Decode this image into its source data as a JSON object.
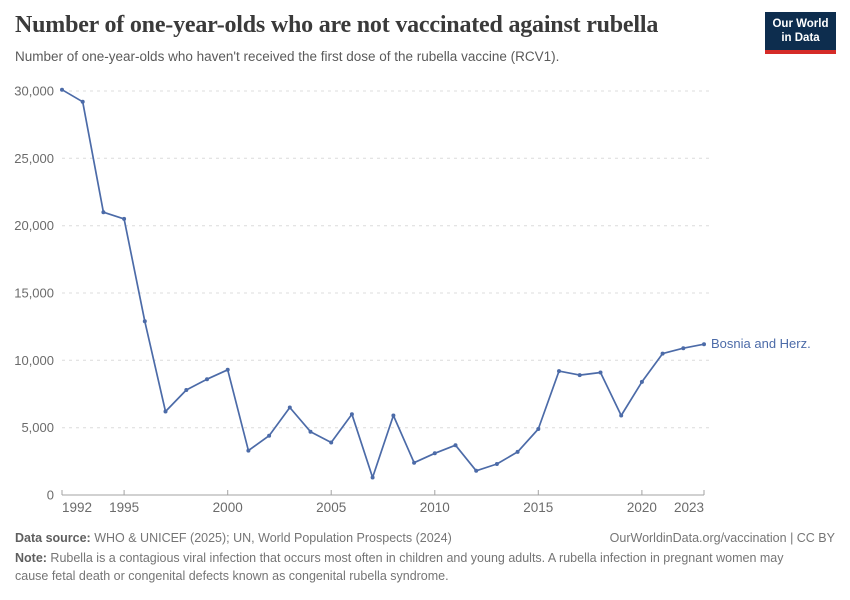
{
  "header": {
    "title": "Number of one-year-olds who are not vaccinated against rubella",
    "subtitle": "Number of one-year-olds who haven't received the first dose of the rubella vaccine (RCV1).",
    "logo": {
      "line1": "Our World",
      "line2": "in Data",
      "bg_color": "#0d2d4e",
      "accent_color": "#d52b28"
    }
  },
  "chart_data": {
    "type": "line",
    "title": "Number of one-year-olds who are not vaccinated against rubella",
    "xlabel": "",
    "ylabel": "",
    "grid": "dashed horizontal gridlines",
    "legend_position": "end-of-line label",
    "ylim": [
      0,
      30000
    ],
    "yticks": [
      0,
      5000,
      10000,
      15000,
      20000,
      25000,
      30000
    ],
    "ytick_labels": [
      "0",
      "5,000",
      "10,000",
      "15,000",
      "20,000",
      "25,000",
      "30,000"
    ],
    "xticks": [
      1992,
      1995,
      2000,
      2005,
      2010,
      2015,
      2020,
      2023
    ],
    "x": [
      1992,
      1993,
      1994,
      1995,
      1996,
      1997,
      1998,
      1999,
      2000,
      2001,
      2002,
      2003,
      2004,
      2005,
      2006,
      2007,
      2008,
      2009,
      2010,
      2011,
      2012,
      2013,
      2014,
      2015,
      2016,
      2017,
      2018,
      2019,
      2020,
      2021,
      2022,
      2023
    ],
    "series": [
      {
        "name": "Bosnia and Herz.",
        "color": "#4c6ba8",
        "values": [
          30100,
          29200,
          21000,
          20500,
          12900,
          6200,
          7800,
          8600,
          9300,
          3300,
          4400,
          6500,
          4700,
          3900,
          6000,
          1300,
          5900,
          2400,
          3100,
          3700,
          1800,
          2300,
          3200,
          4900,
          9200,
          8900,
          9100,
          5900,
          8400,
          10500,
          10900,
          11200
        ]
      }
    ],
    "colors": {
      "grid": "#dcdcdc",
      "axis": "#a3a3a3",
      "tick_text": "#6b6b6b"
    }
  },
  "footer": {
    "datasource_label": "Data source:",
    "datasource_text": " WHO & UNICEF (2025); UN, World Population Prospects (2024)",
    "rights": "OurWorldinData.org/vaccination | CC BY",
    "note_label": "Note:",
    "note_text": " Rubella is a contagious viral infection that occurs most often in children and young adults. A rubella infection in pregnant women may cause fetal death or congenital defects known as congenital rubella syndrome."
  }
}
